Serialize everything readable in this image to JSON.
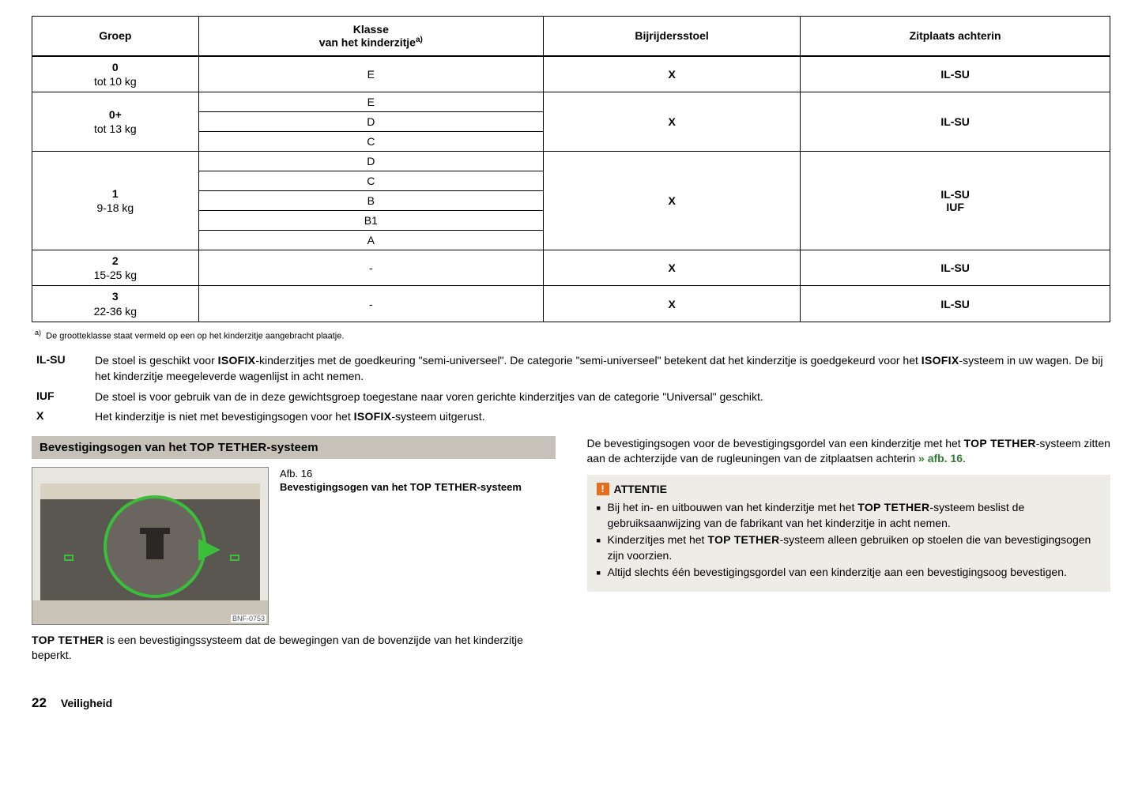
{
  "table": {
    "headers": {
      "group": "Groep",
      "class": "Klasse\nvan het kinderzitje",
      "class_sup": "a)",
      "front": "Bijrijdersstoel",
      "rear": "Zitplaats achterin"
    },
    "groups": [
      {
        "num": "0",
        "sub": "tot 10 kg",
        "classes": [
          "E"
        ],
        "front": "X",
        "rear": "IL-SU"
      },
      {
        "num": "0+",
        "sub": "tot 13 kg",
        "classes": [
          "E",
          "D",
          "C"
        ],
        "front": "X",
        "rear": "IL-SU"
      },
      {
        "num": "1",
        "sub": "9-18 kg",
        "classes": [
          "D",
          "C",
          "B",
          "B1",
          "A"
        ],
        "front": "X",
        "rear": "IL-SU\nIUF"
      },
      {
        "num": "2",
        "sub": "15-25 kg",
        "classes": [
          "-"
        ],
        "front": "X",
        "rear": "IL-SU"
      },
      {
        "num": "3",
        "sub": "22-36 kg",
        "classes": [
          "-"
        ],
        "front": "X",
        "rear": "IL-SU"
      }
    ]
  },
  "footnote": {
    "sup": "a)",
    "text": "De grootteklasse staat vermeld op een op het kinderzitje aangebracht plaatje."
  },
  "legend": [
    {
      "key": "IL-SU",
      "text_pre": "De stoel is geschikt voor ",
      "isofix1": "ISOFIX",
      "text_mid": "-kinderzitjes met de goedkeuring \"semi-universeel\". De categorie \"semi-universeel\" betekent dat het kinderzitje is goedgekeurd voor het ",
      "isofix2": "ISOFIX",
      "text_post": "-systeem in uw wagen. De bij het kinderzitje meegeleverde wagenlijst in acht nemen."
    },
    {
      "key": "IUF",
      "text": "De stoel is voor gebruik van de in deze gewichtsgroep toegestane naar voren gerichte kinderzitjes van de categorie \"Universal\" geschikt."
    },
    {
      "key": "X",
      "text_pre": "Het kinderzitje is niet met bevestigingsogen voor het ",
      "isofix1": "ISOFIX",
      "text_post": "-systeem uitgerust."
    }
  ],
  "left": {
    "header_pre": "Bevestigingsogen van het ",
    "header_tt": "TOP TETHER",
    "header_post": "-systeem",
    "fig_label": "Afb. 16",
    "fig_caption_pre": "Bevestigingsogen van het ",
    "fig_caption_tt": "TOP TETHER",
    "fig_caption_post": "-systeem",
    "img_code": "BNF-0753",
    "para_tt": "TOP TETHER",
    "para_text": " is een bevestigingssysteem dat de bewegingen van de bovenzijde van het kinderzitje beperkt."
  },
  "right": {
    "para_pre": "De bevestigingsogen voor de bevestigingsgordel van een kinderzitje met het ",
    "para_tt": "TOP TETHER",
    "para_mid": "-systeem zitten aan de achterzijde van de rugleuningen van de zitplaatsen achterin ",
    "para_ref": "» afb. 16",
    "attentie": "ATTENTIE",
    "bullets": [
      {
        "pre": "Bij het in- en uitbouwen van het kinderzitje met het ",
        "tt": "TOP TETHER",
        "post": "-systeem beslist de gebruiksaanwijzing van de fabrikant van het kinderzitje in acht nemen."
      },
      {
        "pre": "Kinderzitjes met het ",
        "tt": "TOP TETHER",
        "post": "-systeem alleen gebruiken op stoelen die van bevestigingsogen zijn voorzien."
      },
      {
        "pre": "",
        "tt": "",
        "post": "Altijd slechts één bevestigingsgordel van een kinderzitje aan een bevestigingsoog bevestigen."
      }
    ]
  },
  "footer": {
    "page": "22",
    "section": "Veiligheid"
  },
  "style": {
    "colors": {
      "header_bg": "#c6c2b9",
      "attentie_bg": "#eeece7",
      "attentie_icon": "#e96b1c",
      "reflink": "#2e7d32",
      "circle_green": "#3bbf3b"
    }
  }
}
